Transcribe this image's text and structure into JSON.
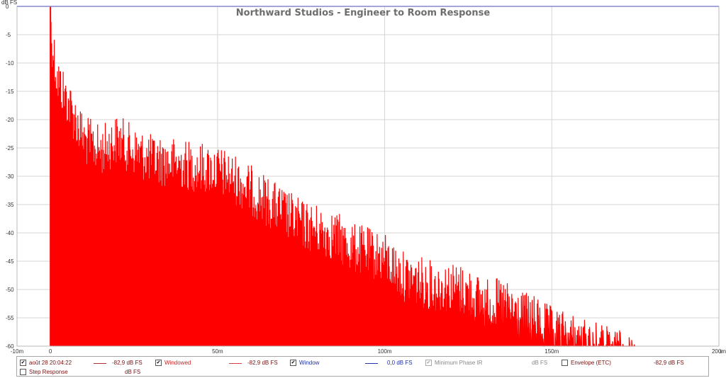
{
  "chart_data": {
    "type": "line",
    "title": "Northward Studios - Engineer to Room Response",
    "y_unit": "dB FS",
    "x_unit": "s",
    "xlim": [
      -0.01,
      0.2
    ],
    "ylim": [
      -60,
      0
    ],
    "grid": true,
    "x_ticks": [
      {
        "value": -0.01,
        "label": "-10m"
      },
      {
        "value": 0,
        "label": "0"
      },
      {
        "value": 0.05,
        "label": "50m"
      },
      {
        "value": 0.1,
        "label": "100m"
      },
      {
        "value": 0.15,
        "label": "150m"
      },
      {
        "value": 0.2,
        "label": "200m"
      }
    ],
    "y_ticks": [
      {
        "value": 0,
        "label": "0"
      },
      {
        "value": -5,
        "label": "-5"
      },
      {
        "value": -10,
        "label": "-10"
      },
      {
        "value": -15,
        "label": "-15"
      },
      {
        "value": -20,
        "label": "-20"
      },
      {
        "value": -25,
        "label": "-25"
      },
      {
        "value": -30,
        "label": "-30"
      },
      {
        "value": -35,
        "label": "-35"
      },
      {
        "value": -40,
        "label": "-40"
      },
      {
        "value": -45,
        "label": "-45"
      },
      {
        "value": -50,
        "label": "-50"
      },
      {
        "value": -55,
        "label": "-55"
      },
      {
        "value": -60,
        "label": "-60"
      }
    ],
    "envelope_x": [
      0.0002,
      0.002,
      0.005,
      0.01,
      0.015,
      0.02,
      0.025,
      0.03,
      0.035,
      0.04,
      0.045,
      0.05,
      0.055,
      0.06,
      0.065,
      0.07,
      0.075,
      0.08,
      0.085,
      0.09,
      0.095,
      0.1,
      0.105,
      0.11,
      0.115,
      0.12,
      0.125,
      0.13,
      0.135,
      0.14,
      0.145,
      0.15,
      0.155,
      0.16,
      0.165,
      0.17,
      0.175
    ],
    "envelope_y": [
      0,
      -8.3,
      -12,
      -19,
      -21,
      -19,
      -21,
      -22.5,
      -23,
      -23.5,
      -24,
      -24.5,
      -26,
      -28,
      -30,
      -32,
      -34,
      -35,
      -36,
      -38,
      -39,
      -40,
      -43,
      -44,
      -45,
      -45,
      -46,
      -48,
      -48,
      -50,
      -51,
      -53,
      -54,
      -55,
      -56,
      -57,
      -58.5
    ],
    "series": [
      {
        "name": "août 28 20:04:22",
        "color": "#ff0000"
      },
      {
        "name": "Window",
        "color": "#2020ff"
      }
    ],
    "window_level": 0
  },
  "legend": {
    "items": [
      {
        "label": "août 28 20:04:22",
        "checked": true,
        "swatch_color": "#b03030",
        "value": "-82,9 dB FS",
        "color": "#7a1010"
      },
      {
        "label": "Windowed",
        "checked": true,
        "swatch_color": "#d04040",
        "value": "-82,9 dB FS",
        "color": "#cc2222"
      },
      {
        "label": "Window",
        "checked": true,
        "swatch_color": "#2233aa",
        "value": "0,0 dB FS",
        "color": "#1f2fa8"
      },
      {
        "label": "Minimum Phase IR",
        "checked": true,
        "disabled": true,
        "value": "dB FS",
        "color": "#888888"
      },
      {
        "label": "Envelope (ETC)",
        "checked": false,
        "value": "-82,9 dB FS",
        "color": "#7a1010"
      },
      {
        "label": "Step Response",
        "checked": false,
        "value": "dB FS",
        "color": "#7a1010"
      }
    ]
  }
}
